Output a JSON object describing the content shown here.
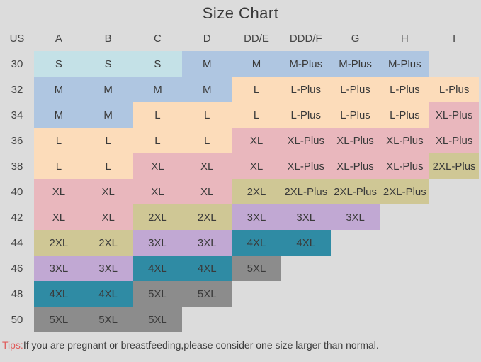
{
  "title": "Size Chart",
  "columns": [
    "US",
    "A",
    "B",
    "C",
    "D",
    "DD/E",
    "DDD/F",
    "G",
    "H",
    "I"
  ],
  "rows": [
    {
      "label": "30",
      "cells": [
        {
          "v": "S",
          "c": "cyan"
        },
        {
          "v": "S",
          "c": "cyan"
        },
        {
          "v": "S",
          "c": "cyan"
        },
        {
          "v": "M",
          "c": "blue"
        },
        {
          "v": "M",
          "c": "blue"
        },
        {
          "v": "M-Plus",
          "c": "blue"
        },
        {
          "v": "M-Plus",
          "c": "blue"
        },
        {
          "v": "M-Plus",
          "c": "blue"
        },
        {
          "v": "",
          "c": "none"
        }
      ]
    },
    {
      "label": "32",
      "cells": [
        {
          "v": "M",
          "c": "blue"
        },
        {
          "v": "M",
          "c": "blue"
        },
        {
          "v": "M",
          "c": "blue"
        },
        {
          "v": "M",
          "c": "blue"
        },
        {
          "v": "L",
          "c": "peach"
        },
        {
          "v": "L-Plus",
          "c": "peach"
        },
        {
          "v": "L-Plus",
          "c": "peach"
        },
        {
          "v": "L-Plus",
          "c": "peach"
        },
        {
          "v": "L-Plus",
          "c": "peach"
        }
      ]
    },
    {
      "label": "34",
      "cells": [
        {
          "v": "M",
          "c": "blue"
        },
        {
          "v": "M",
          "c": "blue"
        },
        {
          "v": "L",
          "c": "peach"
        },
        {
          "v": "L",
          "c": "peach"
        },
        {
          "v": "L",
          "c": "peach"
        },
        {
          "v": "L-Plus",
          "c": "peach"
        },
        {
          "v": "L-Plus",
          "c": "peach"
        },
        {
          "v": "L-Plus",
          "c": "peach"
        },
        {
          "v": "XL-Plus",
          "c": "pink"
        }
      ]
    },
    {
      "label": "36",
      "cells": [
        {
          "v": "L",
          "c": "peach"
        },
        {
          "v": "L",
          "c": "peach"
        },
        {
          "v": "L",
          "c": "peach"
        },
        {
          "v": "L",
          "c": "peach"
        },
        {
          "v": "XL",
          "c": "pink"
        },
        {
          "v": "XL-Plus",
          "c": "pink"
        },
        {
          "v": "XL-Plus",
          "c": "pink"
        },
        {
          "v": "XL-Plus",
          "c": "pink"
        },
        {
          "v": "XL-Plus",
          "c": "pink"
        }
      ]
    },
    {
      "label": "38",
      "cells": [
        {
          "v": "L",
          "c": "peach"
        },
        {
          "v": "L",
          "c": "peach"
        },
        {
          "v": "XL",
          "c": "pink"
        },
        {
          "v": "XL",
          "c": "pink"
        },
        {
          "v": "XL",
          "c": "pink"
        },
        {
          "v": "XL-Plus",
          "c": "pink"
        },
        {
          "v": "XL-Plus",
          "c": "pink"
        },
        {
          "v": "XL-Plus",
          "c": "pink"
        },
        {
          "v": "2XL-Plus",
          "c": "olive"
        }
      ]
    },
    {
      "label": "40",
      "cells": [
        {
          "v": "XL",
          "c": "pink"
        },
        {
          "v": "XL",
          "c": "pink"
        },
        {
          "v": "XL",
          "c": "pink"
        },
        {
          "v": "XL",
          "c": "pink"
        },
        {
          "v": "2XL",
          "c": "olive"
        },
        {
          "v": "2XL-Plus",
          "c": "olive"
        },
        {
          "v": "2XL-Plus",
          "c": "olive"
        },
        {
          "v": "2XL-Plus",
          "c": "olive"
        },
        {
          "v": "",
          "c": "none"
        }
      ]
    },
    {
      "label": "42",
      "cells": [
        {
          "v": "XL",
          "c": "pink"
        },
        {
          "v": "XL",
          "c": "pink"
        },
        {
          "v": "2XL",
          "c": "olive"
        },
        {
          "v": "2XL",
          "c": "olive"
        },
        {
          "v": "3XL",
          "c": "purple"
        },
        {
          "v": "3XL",
          "c": "purple"
        },
        {
          "v": "3XL",
          "c": "purple"
        },
        {
          "v": "",
          "c": "none"
        },
        {
          "v": "",
          "c": "none"
        }
      ]
    },
    {
      "label": "44",
      "cells": [
        {
          "v": "2XL",
          "c": "olive"
        },
        {
          "v": "2XL",
          "c": "olive"
        },
        {
          "v": "3XL",
          "c": "purple"
        },
        {
          "v": "3XL",
          "c": "purple"
        },
        {
          "v": "4XL",
          "c": "teal"
        },
        {
          "v": "4XL",
          "c": "teal"
        },
        {
          "v": "",
          "c": "none"
        },
        {
          "v": "",
          "c": "none"
        },
        {
          "v": "",
          "c": "none"
        }
      ]
    },
    {
      "label": "46",
      "cells": [
        {
          "v": "3XL",
          "c": "purple"
        },
        {
          "v": "3XL",
          "c": "purple"
        },
        {
          "v": "4XL",
          "c": "teal"
        },
        {
          "v": "4XL",
          "c": "teal"
        },
        {
          "v": "5XL",
          "c": "gray"
        },
        {
          "v": "",
          "c": "none"
        },
        {
          "v": "",
          "c": "none"
        },
        {
          "v": "",
          "c": "none"
        },
        {
          "v": "",
          "c": "none"
        }
      ]
    },
    {
      "label": "48",
      "cells": [
        {
          "v": "4XL",
          "c": "teal"
        },
        {
          "v": "4XL",
          "c": "teal"
        },
        {
          "v": "5XL",
          "c": "gray"
        },
        {
          "v": "5XL",
          "c": "gray"
        },
        {
          "v": "",
          "c": "none"
        },
        {
          "v": "",
          "c": "none"
        },
        {
          "v": "",
          "c": "none"
        },
        {
          "v": "",
          "c": "none"
        },
        {
          "v": "",
          "c": "none"
        }
      ]
    },
    {
      "label": "50",
      "cells": [
        {
          "v": "5XL",
          "c": "gray"
        },
        {
          "v": "5XL",
          "c": "gray"
        },
        {
          "v": "5XL",
          "c": "gray"
        },
        {
          "v": "",
          "c": "none"
        },
        {
          "v": "",
          "c": "none"
        },
        {
          "v": "",
          "c": "none"
        },
        {
          "v": "",
          "c": "none"
        },
        {
          "v": "",
          "c": "none"
        },
        {
          "v": "",
          "c": "none"
        }
      ]
    }
  ],
  "colors": {
    "cyan": "#c4e1e7",
    "blue": "#afc6e1",
    "peach": "#fcdcba",
    "pink": "#e9b7bd",
    "olive": "#cfc795",
    "purple": "#c1a8d3",
    "teal": "#2f8ba4",
    "gray": "#8c8c8c",
    "none": "transparent",
    "background": "#dcdcdc",
    "tips_red": "#e05a5a"
  },
  "tips": {
    "label": "Tips:",
    "text": "If you are pregnant or breastfeeding,please consider one size larger than normal."
  },
  "chart_data": {
    "type": "table",
    "title": "Size Chart",
    "columns": [
      "US",
      "A",
      "B",
      "C",
      "D",
      "DD/E",
      "DDD/F",
      "G",
      "H",
      "I"
    ],
    "rows": [
      [
        "30",
        "S",
        "S",
        "S",
        "M",
        "M",
        "M-Plus",
        "M-Plus",
        "M-Plus",
        ""
      ],
      [
        "32",
        "M",
        "M",
        "M",
        "M",
        "L",
        "L-Plus",
        "L-Plus",
        "L-Plus",
        "L-Plus"
      ],
      [
        "34",
        "M",
        "M",
        "L",
        "L",
        "L",
        "L-Plus",
        "L-Plus",
        "L-Plus",
        "XL-Plus"
      ],
      [
        "36",
        "L",
        "L",
        "L",
        "L",
        "XL",
        "XL-Plus",
        "XL-Plus",
        "XL-Plus",
        "XL-Plus"
      ],
      [
        "38",
        "L",
        "L",
        "XL",
        "XL",
        "XL",
        "XL-Plus",
        "XL-Plus",
        "XL-Plus",
        "2XL-Plus"
      ],
      [
        "40",
        "XL",
        "XL",
        "XL",
        "XL",
        "2XL",
        "2XL-Plus",
        "2XL-Plus",
        "2XL-Plus",
        ""
      ],
      [
        "42",
        "XL",
        "XL",
        "2XL",
        "2XL",
        "3XL",
        "3XL",
        "3XL",
        "",
        ""
      ],
      [
        "44",
        "2XL",
        "2XL",
        "3XL",
        "3XL",
        "4XL",
        "4XL",
        "",
        "",
        ""
      ],
      [
        "46",
        "3XL",
        "3XL",
        "4XL",
        "4XL",
        "5XL",
        "",
        "",
        "",
        ""
      ],
      [
        "48",
        "4XL",
        "4XL",
        "5XL",
        "5XL",
        "",
        "",
        "",
        "",
        ""
      ],
      [
        "50",
        "5XL",
        "5XL",
        "5XL",
        "",
        "",
        "",
        "",
        "",
        ""
      ]
    ],
    "note": "Tips:If you are pregnant or breastfeeding,please consider one size larger than normal.",
    "legend_colors_by_size_group": {
      "S": "#c4e1e7",
      "M": "#afc6e1",
      "L": "#fcdcba",
      "XL": "#e9b7bd",
      "2XL": "#cfc795",
      "3XL": "#c1a8d3",
      "4XL": "#2f8ba4",
      "5XL": "#8c8c8c"
    }
  }
}
